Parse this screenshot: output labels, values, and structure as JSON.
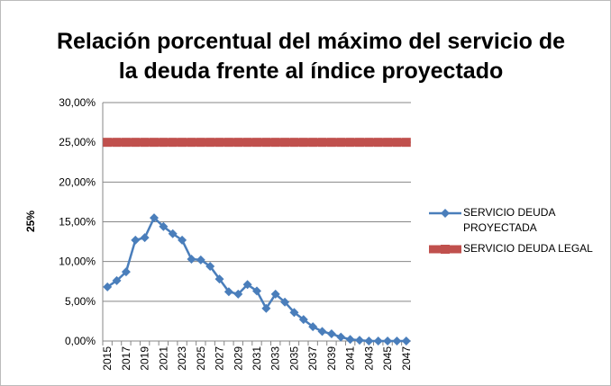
{
  "chart_data": {
    "type": "line",
    "title": "Relación porcentual del máximo del servicio de la deuda frente al índice proyectado",
    "ylabel": "25%",
    "categories": [
      "2015",
      null,
      "2017",
      null,
      "2019",
      null,
      "2021",
      null,
      "2023",
      null,
      "2025",
      null,
      "2027",
      null,
      "2029",
      null,
      "2031",
      null,
      "2033",
      null,
      "2035",
      null,
      "2037",
      null,
      "2039",
      null,
      "2041",
      null,
      "2043",
      null,
      "2045",
      null,
      "2047"
    ],
    "series": [
      {
        "name": "SERVICIO DEUDA PROYECTADA",
        "color": "#4a7ebb",
        "marker": "diamond",
        "values": [
          6.8,
          7.6,
          8.7,
          12.7,
          13.0,
          15.5,
          14.4,
          13.5,
          12.7,
          10.3,
          10.2,
          9.4,
          7.8,
          6.2,
          5.9,
          7.1,
          6.3,
          4.1,
          5.9,
          4.9,
          3.6,
          2.7,
          1.8,
          1.2,
          0.9,
          0.5,
          0.2,
          0.1,
          0,
          0,
          0,
          0,
          0
        ]
      },
      {
        "name": "SERVICIO DEUDA LEGAL",
        "color": "#c0504d",
        "marker": "square",
        "values": [
          25,
          25,
          25,
          25,
          25,
          25,
          25,
          25,
          25,
          25,
          25,
          25,
          25,
          25,
          25,
          25,
          25,
          25,
          25,
          25,
          25,
          25,
          25,
          25,
          25,
          25,
          25,
          25,
          25,
          25,
          25,
          25,
          25
        ]
      }
    ],
    "ylim": [
      0,
      30
    ],
    "yticks": [
      {
        "value": 0,
        "label": "0,00%"
      },
      {
        "value": 5,
        "label": "5,00%"
      },
      {
        "value": 10,
        "label": "10,00%"
      },
      {
        "value": 15,
        "label": "15,00%"
      },
      {
        "value": 20,
        "label": "20,00%"
      },
      {
        "value": 25,
        "label": "25,00%"
      },
      {
        "value": 30,
        "label": "30,00%"
      }
    ],
    "grid": true,
    "legend": "right"
  }
}
